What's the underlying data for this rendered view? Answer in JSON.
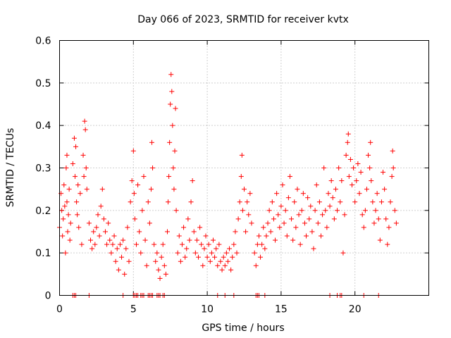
{
  "chart_data": {
    "type": "scatter",
    "title": "Day 066 of 2023, SRMTID for receiver kvtx",
    "xlabel": "GPS time / hours",
    "ylabel": "SRMTID / TECUs",
    "xlim": [
      0,
      25
    ],
    "ylim": [
      0,
      0.6
    ],
    "xticks": [
      0,
      5,
      10,
      15,
      20
    ],
    "xtick_labels": [
      "0",
      "5",
      "10",
      "15",
      "20"
    ],
    "yticks": [
      0,
      0.1,
      0.2,
      0.3,
      0.4,
      0.5,
      0.6
    ],
    "ytick_labels": [
      "0",
      "0.1",
      "0.2",
      "0.3",
      "0.4",
      "0.5",
      "0.6"
    ],
    "grid": true,
    "marker": "+",
    "color": "#ff0000",
    "series": [
      {
        "name": "SRMTID",
        "points": [
          [
            0.0,
            0.16
          ],
          [
            0.1,
            0.24
          ],
          [
            0.15,
            0.2
          ],
          [
            0.2,
            0.14
          ],
          [
            0.25,
            0.18
          ],
          [
            0.3,
            0.26
          ],
          [
            0.35,
            0.21
          ],
          [
            0.4,
            0.1
          ],
          [
            0.45,
            0.3
          ],
          [
            0.5,
            0.22
          ],
          [
            0.5,
            0.33
          ],
          [
            0.55,
            0.15
          ],
          [
            0.6,
            0.19
          ],
          [
            0.65,
            0.25
          ],
          [
            0.7,
            0.13
          ],
          [
            0.75,
            0.17
          ],
          [
            0.9,
            0.31
          ],
          [
            1.0,
            0.37
          ],
          [
            1.05,
            0.28
          ],
          [
            1.1,
            0.35
          ],
          [
            1.15,
            0.22
          ],
          [
            1.2,
            0.19
          ],
          [
            1.25,
            0.26
          ],
          [
            1.3,
            0.16
          ],
          [
            1.4,
            0.24
          ],
          [
            1.5,
            0.12
          ],
          [
            1.6,
            0.33
          ],
          [
            1.65,
            0.28
          ],
          [
            1.7,
            0.41
          ],
          [
            1.75,
            0.39
          ],
          [
            1.8,
            0.3
          ],
          [
            1.85,
            0.25
          ],
          [
            2.0,
            0.17
          ],
          [
            2.1,
            0.13
          ],
          [
            2.2,
            0.11
          ],
          [
            2.3,
            0.15
          ],
          [
            2.4,
            0.12
          ],
          [
            2.5,
            0.16
          ],
          [
            2.6,
            0.19
          ],
          [
            2.7,
            0.14
          ],
          [
            2.8,
            0.21
          ],
          [
            2.9,
            0.25
          ],
          [
            3.0,
            0.18
          ],
          [
            3.1,
            0.15
          ],
          [
            3.2,
            0.12
          ],
          [
            3.3,
            0.17
          ],
          [
            3.4,
            0.13
          ],
          [
            3.5,
            0.1
          ],
          [
            3.6,
            0.12
          ],
          [
            3.7,
            0.14
          ],
          [
            3.8,
            0.08
          ],
          [
            3.9,
            0.11
          ],
          [
            4.0,
            0.06
          ],
          [
            4.1,
            0.12
          ],
          [
            4.2,
            0.09
          ],
          [
            4.3,
            0.13
          ],
          [
            4.4,
            0.05
          ],
          [
            4.5,
            0.11
          ],
          [
            4.6,
            0.16
          ],
          [
            4.7,
            0.08
          ],
          [
            4.8,
            0.22
          ],
          [
            4.9,
            0.27
          ],
          [
            5.0,
            0.34
          ],
          [
            5.05,
            0.24
          ],
          [
            5.1,
            0.18
          ],
          [
            5.2,
            0.12
          ],
          [
            5.3,
            0.26
          ],
          [
            5.4,
            0.15
          ],
          [
            5.5,
            0.1
          ],
          [
            5.6,
            0.2
          ],
          [
            5.7,
            0.28
          ],
          [
            5.8,
            0.13
          ],
          [
            5.9,
            0.07
          ],
          [
            6.0,
            0.22
          ],
          [
            6.1,
            0.17
          ],
          [
            6.2,
            0.25
          ],
          [
            6.25,
            0.36
          ],
          [
            6.3,
            0.3
          ],
          [
            6.4,
            0.12
          ],
          [
            6.5,
            0.08
          ],
          [
            6.6,
            0.1
          ],
          [
            6.7,
            0.06
          ],
          [
            6.8,
            0.04
          ],
          [
            6.9,
            0.09
          ],
          [
            7.0,
            0.12
          ],
          [
            7.1,
            0.07
          ],
          [
            7.2,
            0.05
          ],
          [
            7.3,
            0.15
          ],
          [
            7.35,
            0.22
          ],
          [
            7.4,
            0.28
          ],
          [
            7.45,
            0.36
          ],
          [
            7.5,
            0.45
          ],
          [
            7.55,
            0.52
          ],
          [
            7.6,
            0.48
          ],
          [
            7.65,
            0.4
          ],
          [
            7.7,
            0.3
          ],
          [
            7.75,
            0.25
          ],
          [
            7.8,
            0.34
          ],
          [
            7.85,
            0.44
          ],
          [
            7.9,
            0.2
          ],
          [
            8.0,
            0.1
          ],
          [
            8.1,
            0.14
          ],
          [
            8.2,
            0.08
          ],
          [
            8.3,
            0.12
          ],
          [
            8.4,
            0.16
          ],
          [
            8.5,
            0.09
          ],
          [
            8.6,
            0.11
          ],
          [
            8.7,
            0.18
          ],
          [
            8.8,
            0.13
          ],
          [
            8.9,
            0.22
          ],
          [
            9.0,
            0.27
          ],
          [
            9.1,
            0.15
          ],
          [
            9.2,
            0.1
          ],
          [
            9.3,
            0.13
          ],
          [
            9.4,
            0.09
          ],
          [
            9.5,
            0.16
          ],
          [
            9.6,
            0.12
          ],
          [
            9.7,
            0.07
          ],
          [
            9.8,
            0.11
          ],
          [
            9.9,
            0.14
          ],
          [
            10.0,
            0.09
          ],
          [
            10.1,
            0.12
          ],
          [
            10.2,
            0.08
          ],
          [
            10.3,
            0.1
          ],
          [
            10.4,
            0.13
          ],
          [
            10.5,
            0.09
          ],
          [
            10.6,
            0.11
          ],
          [
            10.7,
            0.07
          ],
          [
            10.8,
            0.12
          ],
          [
            10.9,
            0.08
          ],
          [
            11.0,
            0.06
          ],
          [
            11.1,
            0.09
          ],
          [
            11.2,
            0.07
          ],
          [
            11.3,
            0.1
          ],
          [
            11.4,
            0.08
          ],
          [
            11.5,
            0.11
          ],
          [
            11.6,
            0.06
          ],
          [
            11.7,
            0.09
          ],
          [
            11.8,
            0.12
          ],
          [
            11.9,
            0.15
          ],
          [
            12.0,
            0.1
          ],
          [
            12.1,
            0.18
          ],
          [
            12.2,
            0.22
          ],
          [
            12.3,
            0.28
          ],
          [
            12.35,
            0.33
          ],
          [
            12.4,
            0.2
          ],
          [
            12.5,
            0.25
          ],
          [
            12.6,
            0.15
          ],
          [
            12.7,
            0.22
          ],
          [
            12.8,
            0.19
          ],
          [
            12.9,
            0.24
          ],
          [
            13.0,
            0.17
          ],
          [
            13.2,
            0.1
          ],
          [
            13.3,
            0.07
          ],
          [
            13.4,
            0.12
          ],
          [
            13.5,
            0.14
          ],
          [
            13.6,
            0.09
          ],
          [
            13.7,
            0.12
          ],
          [
            13.8,
            0.16
          ],
          [
            13.9,
            0.11
          ],
          [
            14.0,
            0.14
          ],
          [
            14.1,
            0.17
          ],
          [
            14.2,
            0.2
          ],
          [
            14.3,
            0.15
          ],
          [
            14.4,
            0.22
          ],
          [
            14.5,
            0.18
          ],
          [
            14.6,
            0.13
          ],
          [
            14.7,
            0.24
          ],
          [
            14.8,
            0.19
          ],
          [
            14.9,
            0.16
          ],
          [
            15.0,
            0.21
          ],
          [
            15.1,
            0.26
          ],
          [
            15.2,
            0.17
          ],
          [
            15.3,
            0.2
          ],
          [
            15.4,
            0.14
          ],
          [
            15.5,
            0.23
          ],
          [
            15.6,
            0.28
          ],
          [
            15.7,
            0.18
          ],
          [
            15.8,
            0.13
          ],
          [
            15.9,
            0.22
          ],
          [
            16.0,
            0.16
          ],
          [
            16.1,
            0.25
          ],
          [
            16.2,
            0.19
          ],
          [
            16.3,
            0.12
          ],
          [
            16.4,
            0.2
          ],
          [
            16.5,
            0.24
          ],
          [
            16.6,
            0.17
          ],
          [
            16.7,
            0.14
          ],
          [
            16.8,
            0.23
          ],
          [
            16.9,
            0.18
          ],
          [
            17.0,
            0.21
          ],
          [
            17.1,
            0.15
          ],
          [
            17.2,
            0.11
          ],
          [
            17.3,
            0.2
          ],
          [
            17.4,
            0.26
          ],
          [
            17.5,
            0.17
          ],
          [
            17.6,
            0.22
          ],
          [
            17.7,
            0.14
          ],
          [
            17.8,
            0.19
          ],
          [
            17.9,
            0.3
          ],
          [
            18.0,
            0.2
          ],
          [
            18.1,
            0.16
          ],
          [
            18.2,
            0.24
          ],
          [
            18.3,
            0.21
          ],
          [
            18.4,
            0.27
          ],
          [
            18.5,
            0.23
          ],
          [
            18.6,
            0.18
          ],
          [
            18.7,
            0.25
          ],
          [
            18.8,
            0.2
          ],
          [
            18.9,
            0.3
          ],
          [
            19.0,
            0.22
          ],
          [
            19.1,
            0.27
          ],
          [
            19.2,
            0.1
          ],
          [
            19.3,
            0.19
          ],
          [
            19.4,
            0.33
          ],
          [
            19.5,
            0.36
          ],
          [
            19.55,
            0.38
          ],
          [
            19.6,
            0.28
          ],
          [
            19.7,
            0.32
          ],
          [
            19.8,
            0.26
          ],
          [
            19.9,
            0.3
          ],
          [
            20.0,
            0.22
          ],
          [
            20.1,
            0.27
          ],
          [
            20.2,
            0.31
          ],
          [
            20.3,
            0.24
          ],
          [
            20.4,
            0.29
          ],
          [
            20.5,
            0.19
          ],
          [
            20.6,
            0.16
          ],
          [
            20.7,
            0.2
          ],
          [
            20.8,
            0.25
          ],
          [
            20.9,
            0.33
          ],
          [
            21.0,
            0.3
          ],
          [
            21.05,
            0.36
          ],
          [
            21.1,
            0.27
          ],
          [
            21.2,
            0.22
          ],
          [
            21.3,
            0.17
          ],
          [
            21.4,
            0.2
          ],
          [
            21.5,
            0.24
          ],
          [
            21.6,
            0.18
          ],
          [
            21.7,
            0.13
          ],
          [
            21.8,
            0.22
          ],
          [
            21.9,
            0.29
          ],
          [
            22.0,
            0.25
          ],
          [
            22.1,
            0.18
          ],
          [
            22.2,
            0.12
          ],
          [
            22.3,
            0.16
          ],
          [
            22.4,
            0.22
          ],
          [
            22.5,
            0.28
          ],
          [
            22.55,
            0.34
          ],
          [
            22.6,
            0.3
          ],
          [
            22.7,
            0.2
          ],
          [
            22.8,
            0.17
          ]
        ]
      }
    ],
    "zero_markers": [
      0.9,
      1.0,
      1.1,
      2.0,
      4.3,
      5.0,
      5.1,
      5.2,
      5.3,
      5.5,
      5.6,
      5.7,
      6.0,
      6.1,
      6.2,
      6.3,
      6.6,
      6.7,
      6.8,
      7.0,
      7.1,
      10.7,
      11.2,
      11.8,
      13.3,
      13.4,
      13.5,
      13.9,
      18.3,
      18.8,
      19.0,
      19.1,
      20.6,
      21.6
    ]
  }
}
